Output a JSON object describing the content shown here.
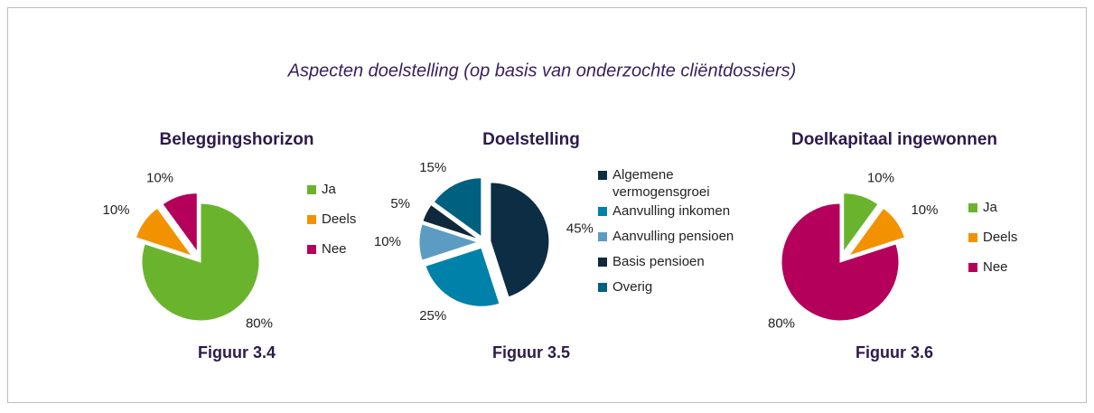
{
  "title": "Aspecten doelstelling (op basis van onderzochte cliëntdossiers)",
  "chart_data": [
    {
      "type": "pie",
      "title": "Beleggingshorizon",
      "caption": "Figuur 3.4",
      "categories": [
        "Ja",
        "Deels",
        "Nee"
      ],
      "values": [
        80,
        10,
        10
      ],
      "value_labels": [
        "80%",
        "10%",
        "10%"
      ],
      "colors": [
        "#6ab42d",
        "#f39200",
        "#b5005b"
      ],
      "exploded": [
        false,
        true,
        true
      ]
    },
    {
      "type": "pie",
      "title": "Doelstelling",
      "caption": "Figuur 3.5",
      "categories": [
        "Algemene vermogensgroei",
        "Aanvulling inkomen",
        "Aanvulling pensioen",
        "Basis pensioen",
        "Overig"
      ],
      "values": [
        45,
        25,
        10,
        5,
        15
      ],
      "value_labels": [
        "45%",
        "25%",
        "10%",
        "5%",
        "15%"
      ],
      "colors": [
        "#0c2d44",
        "#0081a9",
        "#5d9cc2",
        "#10283b",
        "#00607f"
      ],
      "exploded": [
        true,
        true,
        true,
        true,
        true
      ]
    },
    {
      "type": "pie",
      "title": "Doelkapitaal ingewonnen",
      "caption": "Figuur 3.6",
      "categories": [
        "Ja",
        "Deels",
        "Nee"
      ],
      "values": [
        10,
        10,
        80
      ],
      "value_labels": [
        "10%",
        "10%",
        "80%"
      ],
      "colors": [
        "#6ab42d",
        "#f39200",
        "#b5005b"
      ],
      "exploded": [
        true,
        true,
        false
      ]
    }
  ]
}
